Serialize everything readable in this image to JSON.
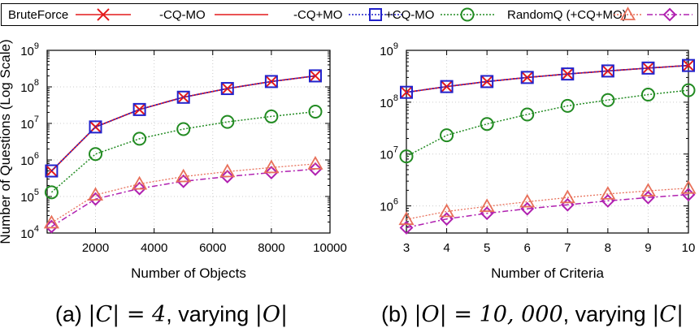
{
  "legend": {
    "entries": [
      {
        "label": "BruteForce",
        "color": "#e41a1c",
        "marker": "x",
        "dash": "solid"
      },
      {
        "label": "-CQ-MO",
        "color": "#e41a1c",
        "marker": "none",
        "dash": "solid"
      },
      {
        "label": "-CQ+MO",
        "color": "#2222cc",
        "marker": "square",
        "dash": "dotted"
      },
      {
        "label": "+CQ-MO",
        "color": "#228b22",
        "marker": "circle",
        "dash": "dotted"
      },
      {
        "label": "RandomQ (+CQ+MO)",
        "color": "#e8705a",
        "marker": "triangle",
        "dash": "dotted"
      },
      {
        "label": "",
        "color": "#b020b0",
        "marker": "diamond",
        "dash": "dashdot"
      }
    ]
  },
  "chart_data": [
    {
      "type": "line",
      "panel": "a",
      "caption": {
        "prefix": "(a) ",
        "math1": "|C| = 4",
        "mid": ", varying ",
        "math2": "|O|"
      },
      "xlabel": "Number of Objects",
      "ylabel": "Number of Questions (Log Scale)",
      "yscale": "log",
      "xlim": [
        350,
        10000
      ],
      "ylim": [
        10000,
        1000000000
      ],
      "xticks": [
        2000,
        4000,
        6000,
        8000,
        10000
      ],
      "ytick_exponents": [
        4,
        5,
        6,
        7,
        8,
        9
      ],
      "grid": true,
      "x": [
        500,
        2000,
        3500,
        5000,
        6500,
        8000,
        9500
      ],
      "series": [
        {
          "name": "BruteForce",
          "values": [
            500000,
            8000000,
            24000000,
            52000000,
            90000000,
            140000000,
            200000000
          ]
        },
        {
          "name": "-CQ-MO",
          "values": [
            500000,
            8000000,
            24000000,
            52000000,
            90000000,
            140000000,
            200000000
          ]
        },
        {
          "name": "-CQ+MO",
          "values": [
            500000,
            8000000,
            24000000,
            52000000,
            90000000,
            140000000,
            200000000
          ]
        },
        {
          "name": "+CQ-MO",
          "values": [
            130000,
            1450000,
            3800000,
            7000000,
            11000000,
            15500000,
            21000000
          ]
        },
        {
          "name": "RandomQ (+CQ+MO)",
          "values": [
            19000,
            110000,
            220000,
            350000,
            480000,
            620000,
            780000
          ]
        },
        {
          "name": "",
          "values": [
            15000,
            85000,
            165000,
            260000,
            350000,
            450000,
            560000
          ]
        }
      ]
    },
    {
      "type": "line",
      "panel": "b",
      "caption": {
        "prefix": "(b) ",
        "math1": "|O| = 10, 000",
        "mid": ", varying ",
        "math2": "|C|"
      },
      "xlabel": "Number of Criteria",
      "ylabel": "",
      "yscale": "log",
      "xlim": [
        3,
        10
      ],
      "ylim": [
        300000,
        1000000000
      ],
      "xticks": [
        3,
        4,
        5,
        6,
        7,
        8,
        9,
        10
      ],
      "ytick_exponents": [
        6,
        7,
        8,
        9
      ],
      "grid": true,
      "x": [
        3,
        4,
        5,
        6,
        7,
        8,
        9,
        10
      ],
      "series": [
        {
          "name": "BruteForce",
          "values": [
            155000000,
            200000000,
            250000000,
            300000000,
            350000000,
            400000000,
            455000000,
            510000000
          ]
        },
        {
          "name": "-CQ-MO",
          "values": [
            155000000,
            200000000,
            250000000,
            300000000,
            350000000,
            400000000,
            455000000,
            510000000
          ]
        },
        {
          "name": "-CQ+MO",
          "values": [
            155000000,
            200000000,
            250000000,
            300000000,
            350000000,
            400000000,
            455000000,
            510000000
          ]
        },
        {
          "name": "+CQ-MO",
          "values": [
            9000000,
            23000000,
            38000000,
            58000000,
            85000000,
            110000000,
            140000000,
            170000000
          ]
        },
        {
          "name": "RandomQ (+CQ+MO)",
          "values": [
            550000,
            780000,
            980000,
            1200000,
            1450000,
            1700000,
            1950000,
            2200000
          ]
        },
        {
          "name": "",
          "values": [
            380000,
            560000,
            720000,
            880000,
            1050000,
            1250000,
            1450000,
            1650000
          ]
        }
      ]
    }
  ]
}
